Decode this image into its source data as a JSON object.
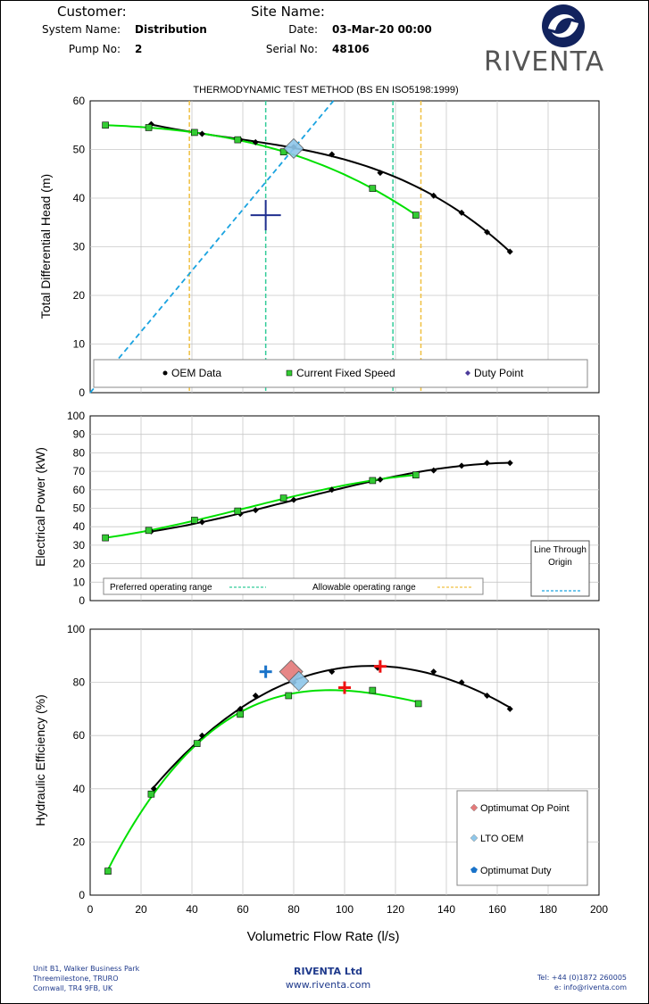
{
  "header": {
    "customer_label": "Customer:",
    "customer_value": "",
    "site_label": "Site Name:",
    "site_value": "",
    "system_label": "System Name:",
    "system_value": "Distribution",
    "date_label": "Date:",
    "date_value": "03-Mar-20 00:00",
    "pump_label": "Pump No:",
    "pump_value": "2",
    "serial_label": "Serial No:",
    "serial_value": "48106",
    "logo_text": "RIVENTA"
  },
  "colors": {
    "oem": "#000000",
    "current": "#00e000",
    "marker": "#33cc33",
    "origin_line": "#1aa3e0",
    "preferred": "#33cc99",
    "allowable": "#f0c040",
    "duty_cross": "#1f2f8f",
    "optimumat_cross": "#ee1111",
    "optimumat_duty": "#1a73c9"
  },
  "chart_data": [
    {
      "type": "line",
      "title": "THERMODYNAMIC TEST METHOD (BS EN ISO5198:1999)",
      "ylabel": "Total Differential Head (m)",
      "xlim": [
        0,
        200
      ],
      "ylim": [
        0,
        60
      ],
      "yticks": [
        "0",
        "10",
        "20",
        "30",
        "40",
        "50",
        "60"
      ],
      "series": [
        {
          "name": "OEM Data",
          "x": [
            24,
            44,
            59,
            65,
            80,
            95,
            114,
            135,
            146,
            156,
            165
          ],
          "y": [
            55.2,
            53.2,
            52,
            51.5,
            50.5,
            49,
            45.2,
            40.5,
            37,
            33,
            29
          ]
        },
        {
          "name": "Current Fixed Speed",
          "x": [
            6,
            23,
            41,
            58,
            76,
            111,
            128
          ],
          "y": [
            55,
            54.5,
            53.5,
            52,
            49.5,
            42,
            36.5
          ]
        }
      ],
      "duty_point_label": "Duty Point",
      "duty_point": {
        "x": 69,
        "y": 36.5
      },
      "lto_point": {
        "x": 80,
        "y": 50.2
      },
      "origin_line": {
        "slope": 0.6275
      },
      "preferred_range": [
        69,
        119
      ],
      "allowable_range": [
        39,
        130
      ]
    },
    {
      "type": "line",
      "ylabel": "Electrical Power (kW)",
      "xlim": [
        0,
        200
      ],
      "ylim": [
        0,
        100
      ],
      "yticks": [
        "0",
        "10",
        "20",
        "30",
        "40",
        "50",
        "60",
        "70",
        "80",
        "90",
        "100"
      ],
      "series": [
        {
          "name": "OEM Data",
          "x": [
            24,
            44,
            59,
            65,
            80,
            95,
            114,
            135,
            146,
            156,
            165
          ],
          "y": [
            37.5,
            42.5,
            47,
            49,
            54.5,
            60,
            65.5,
            70.5,
            73,
            74.5,
            74.5
          ]
        },
        {
          "name": "Current Fixed Speed",
          "x": [
            6,
            23,
            41,
            58,
            76,
            111,
            128
          ],
          "y": [
            34,
            38,
            43.5,
            48.5,
            55.5,
            65,
            68
          ]
        }
      ],
      "legend_preferred": "Preferred operating range",
      "legend_allowable": "Allowable operating range",
      "legend_origin": "Line Through Origin"
    },
    {
      "type": "line",
      "ylabel": "Hydraulic Efficiency (%)",
      "xlabel": "Volumetric Flow Rate (l/s)",
      "xlim": [
        0,
        200
      ],
      "ylim": [
        0,
        100
      ],
      "xticks": [
        "0",
        "20",
        "40",
        "60",
        "80",
        "100",
        "120",
        "140",
        "160",
        "180",
        "200"
      ],
      "yticks": [
        "0",
        "20",
        "40",
        "60",
        "80",
        "100"
      ],
      "series": [
        {
          "name": "OEM Data",
          "x": [
            25,
            44,
            59,
            65,
            80,
            95,
            113,
            135,
            146,
            156,
            165
          ],
          "y": [
            40,
            60,
            70,
            75,
            80,
            84,
            85.5,
            84,
            80,
            75,
            70
          ]
        },
        {
          "name": "Current Fixed Speed",
          "x": [
            7,
            24,
            42,
            59,
            78,
            111,
            129
          ],
          "y": [
            9,
            38,
            57,
            68,
            75,
            77,
            72
          ]
        }
      ],
      "optimumat_op_point_label": "Optimumat Op Point",
      "lto_oem_label": "LTO OEM",
      "optimumat_duty_label": "Optimumat Duty",
      "optimumat_op_point": {
        "x": 79,
        "y": 84
      },
      "lto_oem": {
        "x": 82,
        "y": 80.5
      },
      "optimumat_duty": {
        "x": 69,
        "y": 84
      },
      "optimumat_cross_1": {
        "x": 114,
        "y": 86
      },
      "optimumat_cross_2": {
        "x": 100,
        "y": 78
      }
    }
  ],
  "footer": {
    "addr1": "Unit B1, Walker Business Park",
    "addr2": "Threemilestone, TRURO",
    "addr3": "Cornwall, TR4 9FB, UK",
    "company": "RIVENTA Ltd",
    "web": "www.riventa.com",
    "tel": "Tel: +44 (0)1872 260005",
    "email": "e: info@riventa.com"
  }
}
